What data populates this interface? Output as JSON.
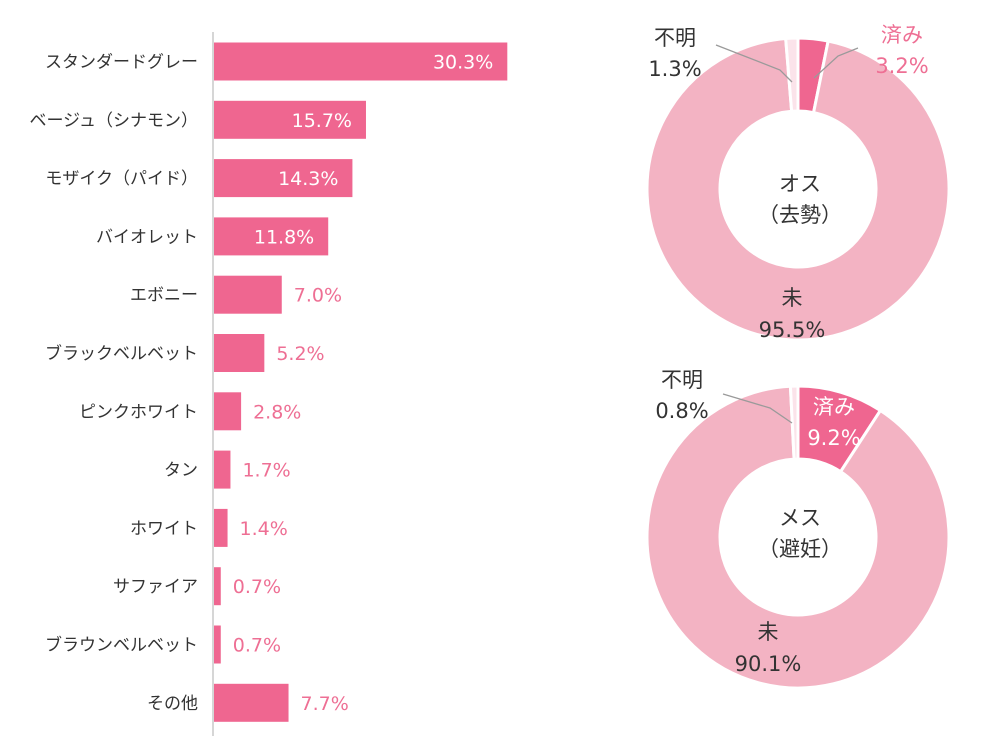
{
  "colors": {
    "bar": "#ef6690",
    "donut_main": "#f3b3c3",
    "donut_highlight": "#ef6690",
    "donut_unknown": "#fbe3ea",
    "value_outside": "#ee6f94",
    "axis": "#c8c8c8"
  },
  "chart_data": [
    {
      "type": "bar",
      "orientation": "horizontal",
      "categories": [
        "スタンダードグレー",
        "ベージュ（シナモン）",
        "モザイク（パイド）",
        "バイオレット",
        "エボニー",
        "ブラックベルベット",
        "ピンクホワイト",
        "タン",
        "ホワイト",
        "サファイア",
        "ブラウンベルベット",
        "その他"
      ],
      "values": [
        30.3,
        15.7,
        14.3,
        11.8,
        7.0,
        5.2,
        2.8,
        1.7,
        1.4,
        0.7,
        0.7,
        7.7
      ],
      "value_labels": [
        "30.3%",
        "15.7%",
        "14.3%",
        "11.8%",
        "7.0%",
        "5.2%",
        "2.8%",
        "1.7%",
        "1.4%",
        "0.7%",
        "0.7%",
        "7.7%"
      ],
      "unit": "%",
      "xlim": [
        0,
        35
      ]
    },
    {
      "type": "pie",
      "donut": true,
      "center_line1": "オス",
      "center_line2": "（去勢）",
      "slices": [
        {
          "label": "済み",
          "value": 3.2,
          "value_label": "3.2%"
        },
        {
          "label": "未",
          "value": 95.5,
          "value_label": "95.5%"
        },
        {
          "label": "不明",
          "value": 1.3,
          "value_label": "1.3%"
        }
      ]
    },
    {
      "type": "pie",
      "donut": true,
      "center_line1": "メス",
      "center_line2": "（避妊）",
      "slices": [
        {
          "label": "済み",
          "value": 9.2,
          "value_label": "9.2%"
        },
        {
          "label": "未",
          "value": 90.1,
          "value_label": "90.1%"
        },
        {
          "label": "不明",
          "value": 0.8,
          "value_label": "0.8%"
        }
      ]
    }
  ]
}
